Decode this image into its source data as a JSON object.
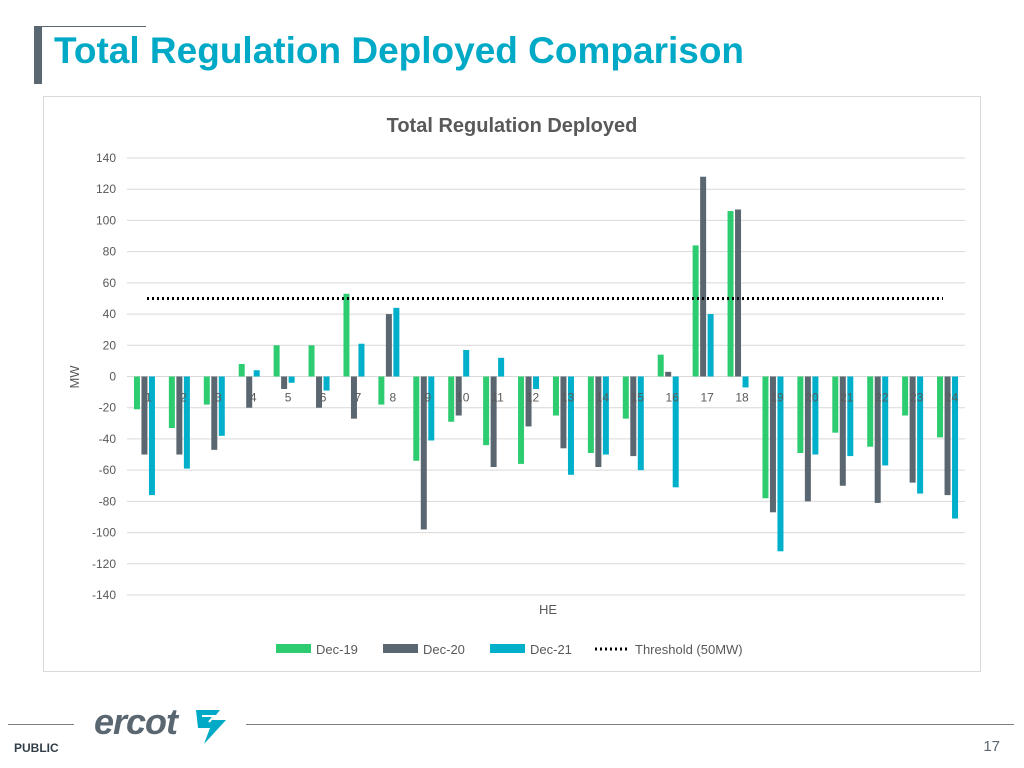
{
  "slide": {
    "title": "Total Regulation Deployed Comparison",
    "footer_label": "PUBLIC",
    "page_number": "17",
    "logo_text": "ercot"
  },
  "colors": {
    "title": "#00a9c5",
    "accent": "#5b6770",
    "dec19": "#2ecc71",
    "dec20": "#5b6770",
    "dec21": "#00b0ca",
    "threshold": "#000000"
  },
  "chart_data": {
    "type": "bar",
    "title": "Total Regulation Deployed",
    "xlabel": "HE",
    "ylabel": "MW",
    "ylim": [
      -140,
      140
    ],
    "yticks": [
      140,
      120,
      100,
      80,
      60,
      40,
      20,
      0,
      -20,
      -40,
      -60,
      -80,
      -100,
      -120,
      -140
    ],
    "grid": true,
    "legend_position": "bottom",
    "categories": [
      "1",
      "2",
      "3",
      "4",
      "5",
      "6",
      "7",
      "8",
      "9",
      "10",
      "11",
      "12",
      "13",
      "14",
      "15",
      "16",
      "17",
      "18",
      "19",
      "20",
      "21",
      "22",
      "23",
      "24"
    ],
    "series": [
      {
        "name": "Dec-19",
        "color": "#2ecc71",
        "values": [
          -21,
          -33,
          -18,
          8,
          20,
          20,
          53,
          -18,
          -54,
          -29,
          -44,
          -56,
          -25,
          -49,
          -27,
          14,
          84,
          106,
          -78,
          -49,
          -36,
          -45,
          -25,
          -39
        ]
      },
      {
        "name": "Dec-20",
        "color": "#5b6770",
        "values": [
          -50,
          -50,
          -47,
          -20,
          -8,
          -20,
          -27,
          40,
          -98,
          -25,
          -58,
          -32,
          -46,
          -58,
          -51,
          3,
          128,
          107,
          -87,
          -80,
          -70,
          -81,
          -68,
          -76
        ]
      },
      {
        "name": "Dec-21",
        "color": "#00b0ca",
        "values": [
          -76,
          -59,
          -38,
          4,
          -4,
          -9,
          21,
          44,
          -41,
          17,
          12,
          -8,
          -63,
          -50,
          -60,
          -71,
          40,
          -7,
          -112,
          -50,
          -51,
          -57,
          -75,
          -91
        ]
      }
    ],
    "threshold": {
      "name": "Threshold (50MW)",
      "value": 50
    }
  }
}
